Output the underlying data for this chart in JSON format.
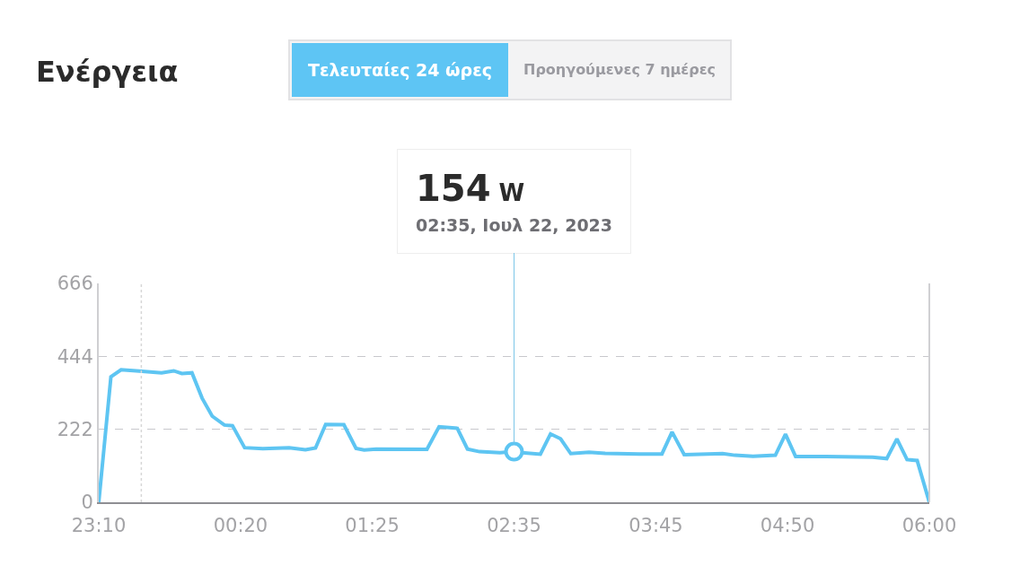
{
  "chart_data": {
    "type": "line",
    "title": "Ενέργεια",
    "annotations": [
      "Τελευταίες 24 ώρες",
      "Προηγούμενες 7 ημέρες",
      {
        "text": "154 W\n02:35, Ιουλ 22, 2023",
        "x": "2023-07-22T02:35",
        "y": 154
      }
    ],
    "x": [
      "2023-07-21T23:10",
      "2023-07-21T23:16",
      "2023-07-21T23:21",
      "2023-07-21T23:30",
      "2023-07-21T23:41",
      "2023-07-21T23:47",
      "2023-07-21T23:51",
      "2023-07-21T23:56",
      "2023-07-22T00:01",
      "2023-07-22T00:06",
      "2023-07-22T00:12",
      "2023-07-22T00:16",
      "2023-07-22T00:22",
      "2023-07-22T00:31",
      "2023-07-22T00:44",
      "2023-07-22T00:52",
      "2023-07-22T00:57",
      "2023-07-22T01:02",
      "2023-07-22T01:11",
      "2023-07-22T01:17",
      "2023-07-22T01:21",
      "2023-07-22T01:27",
      "2023-07-22T01:52",
      "2023-07-22T01:58",
      "2023-07-22T02:07",
      "2023-07-22T02:12",
      "2023-07-22T02:18",
      "2023-07-22T02:28",
      "2023-07-22T02:35",
      "2023-07-22T02:39",
      "2023-07-22T02:48",
      "2023-07-22T02:53",
      "2023-07-22T02:58",
      "2023-07-22T03:03",
      "2023-07-22T03:12",
      "2023-07-22T03:20",
      "2023-07-22T03:37",
      "2023-07-22T03:48",
      "2023-07-22T03:53",
      "2023-07-22T03:59",
      "2023-07-22T04:18",
      "2023-07-22T04:24",
      "2023-07-22T04:33",
      "2023-07-22T04:44",
      "2023-07-22T04:49",
      "2023-07-22T04:54",
      "2023-07-22T05:09",
      "2023-07-22T05:32",
      "2023-07-22T05:39",
      "2023-07-22T05:44",
      "2023-07-22T05:49",
      "2023-07-22T05:54",
      "2023-07-22T06:00"
    ],
    "series": [
      {
        "color": "#5ec5f2",
        "values": [
          0,
          382,
          403,
          399,
          394,
          400,
          392,
          394,
          317,
          262,
          235,
          233,
          166,
          163,
          166,
          160,
          165,
          237,
          236,
          164,
          159,
          162,
          161,
          230,
          225,
          162,
          154,
          151,
          154,
          151,
          146,
          208,
          193,
          148,
          152,
          149,
          147,
          147,
          214,
          145,
          148,
          143,
          140,
          143,
          207,
          139,
          139,
          137,
          133,
          193,
          130,
          127,
          0
        ]
      }
    ],
    "xlim": [
      "2023-07-21T23:10",
      "2023-07-22T06:00"
    ],
    "xticks": [
      {
        "value": "2023-07-21T23:10",
        "label": "23:10"
      },
      {
        "value": "2023-07-22T00:20",
        "label": "00:20"
      },
      {
        "value": "2023-07-22T01:25",
        "label": "01:25"
      },
      {
        "value": "2023-07-22T02:35",
        "label": "02:35"
      },
      {
        "value": "2023-07-22T03:45",
        "label": "03:45"
      },
      {
        "value": "2023-07-22T04:50",
        "label": "04:50"
      },
      {
        "value": "2023-07-22T06:00",
        "label": "06:00"
      }
    ],
    "ylim": [
      0,
      666
    ],
    "yticks": [
      0,
      222,
      444,
      666
    ],
    "ref_lines": [
      {
        "axis": "x",
        "value": "2023-07-21T23:31",
        "color": "#d6d6d6",
        "line_style": "dotted"
      }
    ],
    "grid": "y",
    "marker": "none",
    "line_style": "solid"
  }
}
